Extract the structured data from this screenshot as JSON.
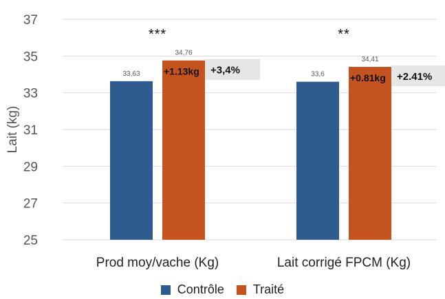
{
  "chart_data": {
    "type": "bar",
    "ylabel": "Lait (kg)",
    "ylim": [
      25,
      37
    ],
    "yticks": [
      25,
      27,
      29,
      31,
      33,
      35,
      37
    ],
    "grid": true,
    "categories": [
      "Prod moy/vache (Kg)",
      "Lait corrigé FPCM (Kg)"
    ],
    "series": [
      {
        "name": "Contrôle",
        "color": "#2e5c8e",
        "values": [
          33.63,
          33.6
        ],
        "labels": [
          "33,63",
          "33,6"
        ]
      },
      {
        "name": "Traité",
        "color": "#c4531f",
        "values": [
          34.76,
          34.41
        ],
        "labels": [
          "34,76",
          "34,41"
        ]
      }
    ],
    "annotations": [
      {
        "significance": "***",
        "delta": "+1.13kg",
        "percent": "+3,4%"
      },
      {
        "significance": "**",
        "delta": "+0.81kg",
        "percent": "+2.41%"
      }
    ],
    "legend_position": "bottom"
  }
}
